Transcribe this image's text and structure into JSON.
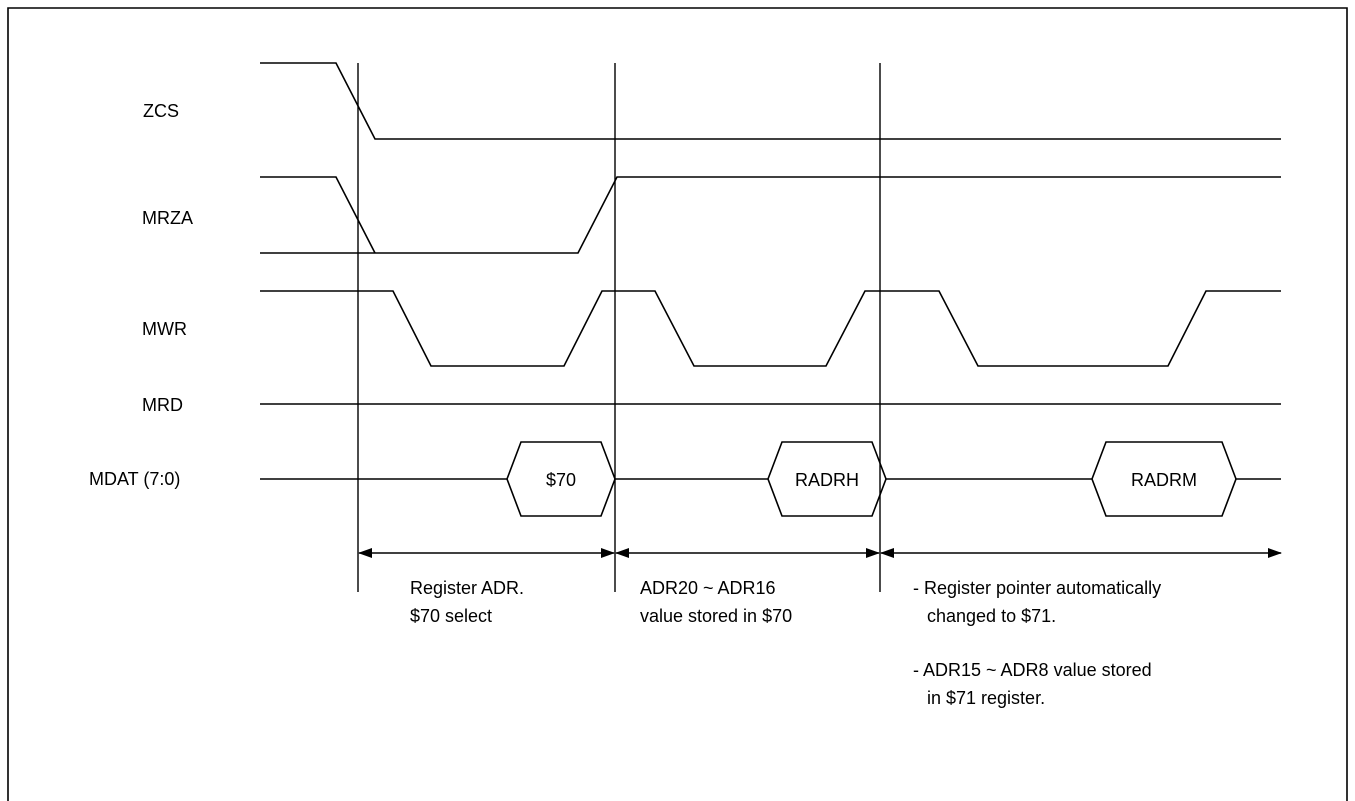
{
  "signals": {
    "zcs": "ZCS",
    "mrza": "MRZA",
    "mwr": "MWR",
    "mrd": "MRD",
    "mdat": "MDAT (7:0)"
  },
  "bus_values": {
    "v1": "$70",
    "v2": "RADRH",
    "v3": "RADRM"
  },
  "annotations": {
    "seg1": [
      "Register ADR.",
      "$70 select"
    ],
    "seg2": [
      "ADR20 ~ ADR16",
      "value stored in $70"
    ],
    "seg3_note1": [
      "- Register pointer automatically",
      "changed to $71."
    ],
    "seg3_note2": [
      "- ADR15 ~ ADR8 value stored",
      "in $71 register."
    ]
  }
}
